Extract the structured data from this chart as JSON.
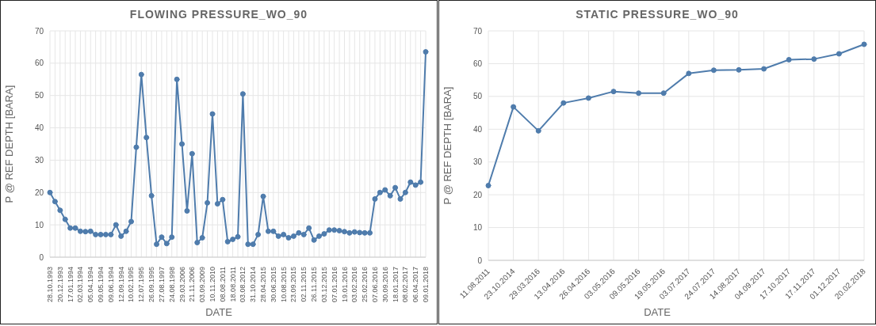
{
  "chart_data": [
    {
      "type": "line",
      "title": "FLOWING PRESSURE_WO_90",
      "xlabel": "DATE",
      "ylabel": "P @ REF DEPTH [BARA]",
      "color": "#4f7cac",
      "marker": "circle",
      "grid": true,
      "ylim": [
        0,
        70
      ],
      "yticks": [
        0,
        10,
        20,
        30,
        40,
        50,
        60,
        70
      ],
      "categories": [
        "28.10.1993",
        null,
        "20.12.1993",
        null,
        "17.01.1994",
        null,
        "02.03.1994",
        null,
        "05.04.1994",
        null,
        "09.05.1994",
        null,
        "09.06.1994",
        null,
        "12.09.1994",
        null,
        "10.02.1995",
        null,
        "12.07.1995",
        null,
        "26.09.1995",
        null,
        "27.08.1997",
        null,
        "24.08.1998",
        null,
        "29.03.2006",
        null,
        "21.11.2006",
        null,
        "03.09.2009",
        null,
        "10.11.2010",
        null,
        "08.08.2011",
        null,
        "18.08.2011",
        null,
        "03.08.2012",
        null,
        "31.10.2014",
        null,
        "28.04.2015",
        null,
        "30.06.2015",
        null,
        "10.08.2015",
        null,
        "23.09.2015",
        null,
        "02.11.2015",
        null,
        "26.11.2015",
        null,
        "03.12.2015",
        null,
        "07.01.2016",
        null,
        "19.01.2016",
        null,
        "03.02.2016",
        null,
        "25.02.2016",
        null,
        "07.06.2016",
        null,
        "30.09.2016",
        null,
        "18.01.2017",
        null,
        "08.02.2017",
        null,
        "06.04.2017",
        null,
        "09.01.2018"
      ],
      "values": [
        20,
        17.2,
        14.5,
        11.7,
        9,
        9,
        8,
        7.9,
        8,
        7,
        7,
        7,
        7,
        10,
        6.5,
        8,
        11,
        34,
        56.5,
        37,
        19,
        4,
        6.2,
        4.2,
        6.2,
        55,
        35,
        14.3,
        32,
        4.5,
        6,
        16.8,
        44.3,
        16.5,
        17.8,
        4.8,
        5.5,
        6.3,
        50.5,
        4,
        4,
        7,
        18.8,
        8,
        8,
        6.5,
        7,
        6,
        6.5,
        7.5,
        7,
        9,
        5.3,
        6.5,
        7.2,
        8.4,
        8.4,
        8.2,
        7.9,
        7.5,
        7.8,
        7.6,
        7.5,
        7.5,
        18,
        20,
        20.8,
        19,
        21.5,
        18,
        20,
        23.2,
        22.3,
        23.2,
        63.5
      ]
    },
    {
      "type": "line",
      "title": "STATIC PRESSURE_WO_90",
      "xlabel": "DATE",
      "ylabel": "P @ REF DEPTH [BARA]",
      "color": "#4f7cac",
      "marker": "circle",
      "grid": true,
      "ylim": [
        0,
        70
      ],
      "yticks": [
        0,
        10,
        20,
        30,
        40,
        50,
        60,
        70
      ],
      "categories": [
        "11.08.2011",
        "23.10.2014",
        "29.03.2016",
        "13.04.2016",
        "26.04.2016",
        "03.05.2016",
        "09.05.2016",
        "19.05.2016",
        "03.07.2017",
        "24.07.2017",
        "14.08.2017",
        "04.09.2017",
        "17.10.2017",
        "17.11.2017",
        "01.12.2017",
        "20.02.2018"
      ],
      "values": [
        22.8,
        46.8,
        39.5,
        48,
        49.5,
        51.5,
        51,
        51,
        57,
        58,
        58.1,
        58.4,
        61.2,
        61.4,
        63,
        65.9
      ]
    }
  ]
}
